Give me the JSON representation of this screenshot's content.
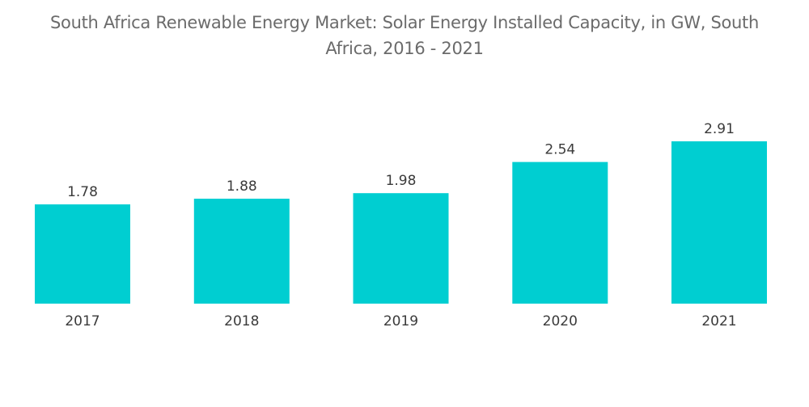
{
  "chart_data": {
    "type": "bar",
    "title_line1": "South Africa Renewable Energy Market: Solar Energy Installed Capacity, in GW, South",
    "title_line2": "Africa, 2016 - 2021",
    "categories": [
      "2017",
      "2018",
      "2019",
      "2020",
      "2021"
    ],
    "values": [
      1.78,
      1.88,
      1.98,
      2.54,
      2.91
    ],
    "value_labels": [
      "1.78",
      "1.88",
      "1.98",
      "2.54",
      "2.91"
    ],
    "xlabel": "",
    "ylabel": "",
    "ylim": [
      0,
      2.91
    ],
    "grid": false,
    "colors": {
      "bar": "#00ced1",
      "text": "#3a3a3a",
      "title": "#6b6b6b"
    }
  }
}
